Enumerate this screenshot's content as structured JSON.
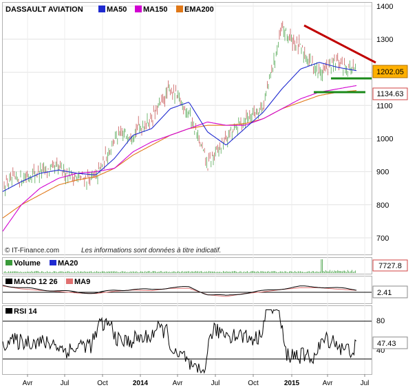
{
  "main": {
    "title": "DASSAULT AVIATION",
    "legend": [
      {
        "label": "MA50",
        "color": "#1f2ad0"
      },
      {
        "label": "MA150",
        "color": "#d100d1"
      },
      {
        "label": "EMA200",
        "color": "#e07818"
      }
    ],
    "credit": "© IT-Finance.com",
    "disclaimer": "Les informations sont données à titre indicatif.",
    "yticks": [
      700,
      800,
      900,
      1000,
      1100,
      1200,
      1300,
      1400
    ],
    "price_tags": [
      {
        "value": "1202.05",
        "num": 1202.05,
        "bg": "#ffb000",
        "border": "#b07000",
        "color": "#000000"
      },
      {
        "value": "1134.63",
        "num": 1134.63,
        "bg": "#ffffff",
        "border": "#d04040",
        "color": "#000000"
      }
    ],
    "annotations": {
      "trend_color": "#c00000",
      "support_color": "#1a8a1a"
    }
  },
  "volume": {
    "legend": [
      {
        "label": "Volume",
        "color": "#3a9a3a"
      },
      {
        "label": "MA20",
        "color": "#1f2ad0"
      }
    ],
    "value": "7727.8"
  },
  "macd": {
    "legend": [
      {
        "label": "MACD 12 26",
        "color": "#000000"
      },
      {
        "label": "MA9",
        "color": "#e07070"
      }
    ],
    "value": "2.41"
  },
  "rsi": {
    "legend": [
      {
        "label": "RSI 14",
        "color": "#000000"
      }
    ],
    "ticks": [
      40,
      80
    ],
    "value": "47.43"
  },
  "xaxis": {
    "labels": [
      "Avr",
      "Jul",
      "Oct",
      "2014",
      "Avr",
      "Jul",
      "Oct",
      "2015",
      "Avr",
      "Jul"
    ],
    "bold": [
      false,
      false,
      false,
      true,
      false,
      false,
      false,
      true,
      false,
      false
    ]
  },
  "chart_data": {
    "type": "line",
    "title": "DASSAULT AVIATION",
    "period": "2013-02 to 2015-07",
    "ylim": [
      650,
      1410
    ],
    "x": [
      "2013-02",
      "2013-04",
      "2013-06",
      "2013-08",
      "2013-10",
      "2013-12",
      "2014-02",
      "2014-04",
      "2014-06",
      "2014-07",
      "2014-08",
      "2014-10",
      "2014-11",
      "2014-12",
      "2015-01",
      "2015-02",
      "2015-03",
      "2015-04",
      "2015-05",
      "2015-06"
    ],
    "series": [
      {
        "name": "Close",
        "values": [
          860,
          880,
          900,
          910,
          880,
          880,
          1000,
          1020,
          1060,
          1150,
          1080,
          920,
          1000,
          1060,
          1100,
          1330,
          1270,
          1200,
          1230,
          1202
        ]
      },
      {
        "name": "MA50",
        "values": [
          840,
          870,
          895,
          905,
          895,
          890,
          940,
          1010,
          1030,
          1090,
          1110,
          1020,
          980,
          1030,
          1080,
          1150,
          1210,
          1230,
          1215,
          1205
        ]
      },
      {
        "name": "MA150",
        "values": [
          720,
          800,
          850,
          880,
          895,
          900,
          910,
          960,
          990,
          1010,
          1030,
          1050,
          1040,
          1040,
          1060,
          1090,
          1120,
          1140,
          1150,
          1160
        ]
      },
      {
        "name": "EMA200",
        "values": [
          760,
          800,
          830,
          860,
          875,
          885,
          910,
          950,
          980,
          1010,
          1030,
          1040,
          1040,
          1045,
          1060,
          1090,
          1110,
          1130,
          1140,
          1145
        ]
      }
    ],
    "panels": {
      "volume": {
        "last": 7727.8
      },
      "macd": {
        "last": 2.41
      },
      "rsi": {
        "last": 47.43,
        "levels": [
          40,
          80
        ]
      }
    }
  }
}
